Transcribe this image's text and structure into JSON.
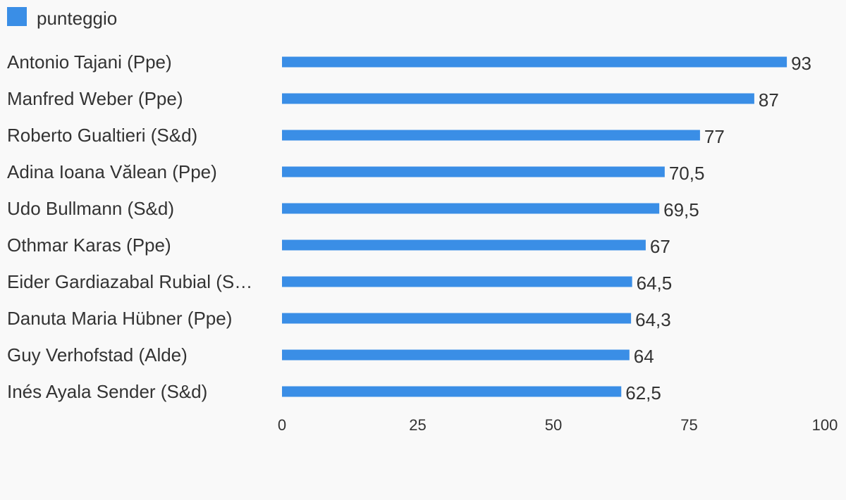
{
  "chart_data": {
    "type": "bar",
    "orientation": "horizontal",
    "title": "",
    "xlabel": "",
    "ylabel": "",
    "xlim": [
      0,
      100
    ],
    "xticks": [
      "0",
      "25",
      "50",
      "75",
      "100"
    ],
    "grid": false,
    "legend_position": "top-left",
    "categories": [
      "Antonio Tajani (Ppe)",
      "Manfred Weber (Ppe)",
      "Roberto Gualtieri (S&d)",
      "Adina Ioana Vălean (Ppe)",
      "Udo Bullmann (S&d)",
      "Othmar Karas (Ppe)",
      "Eider Gardiazabal Rubial (S…",
      "Danuta Maria Hübner (Ppe)",
      "Guy Verhofstad (Alde)",
      "Inés Ayala Sender (S&d)"
    ],
    "series": [
      {
        "name": "punteggio",
        "color": "#3a8ee6",
        "values": [
          93,
          87,
          77,
          70.5,
          69.5,
          67,
          64.5,
          64.3,
          64,
          62.5
        ],
        "value_labels": [
          "93",
          "87",
          "77",
          "70,5",
          "69,5",
          "67",
          "64,5",
          "64,3",
          "64",
          "62,5"
        ]
      }
    ]
  }
}
